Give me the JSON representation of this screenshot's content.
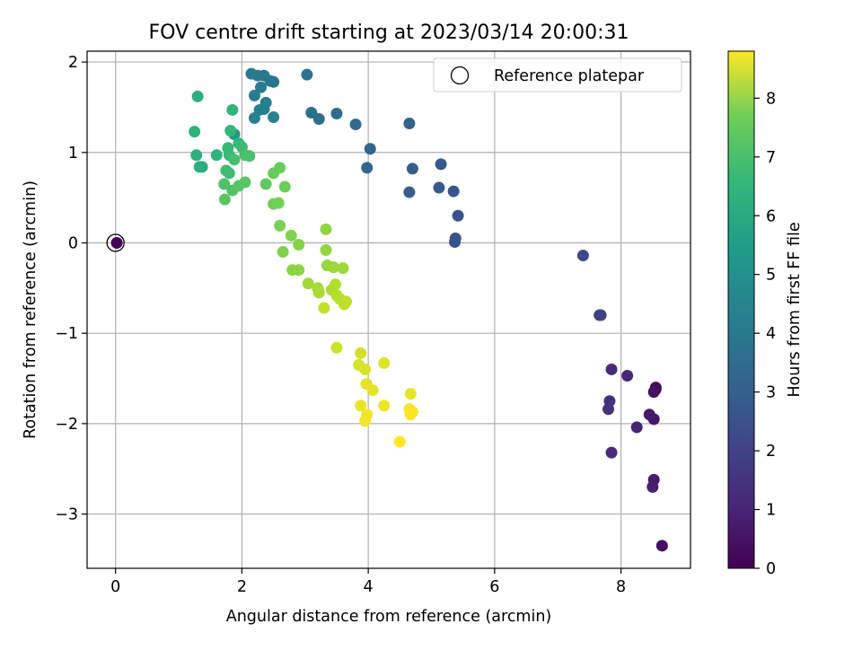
{
  "chart_data": {
    "type": "scatter",
    "title": "FOV centre drift starting at 2023/03/14 20:00:31",
    "xlabel": "Angular distance from reference (arcmin)",
    "ylabel": "Rotation from reference (arcmin)",
    "xlim": [
      -0.45,
      9.1
    ],
    "ylim": [
      -3.6,
      2.12
    ],
    "xticks": [
      0,
      2,
      4,
      6,
      8
    ],
    "yticks": [
      -3,
      -2,
      -1,
      0,
      1,
      2
    ],
    "grid": true,
    "legend": {
      "placement": "top-right",
      "entries": [
        "Reference platepar"
      ]
    },
    "colorbar": {
      "label": "Hours from first FF file",
      "range": [
        0,
        8.8
      ],
      "ticks": [
        0,
        1,
        2,
        3,
        4,
        5,
        6,
        7,
        8
      ],
      "colormap": "viridis"
    },
    "reference_point": {
      "x": 0,
      "y": 0
    },
    "points": [
      {
        "x": 8.65,
        "y": -3.35,
        "h": 0.3
      },
      {
        "x": 8.55,
        "y": -1.62,
        "h": 0.35
      },
      {
        "x": 8.55,
        "y": -1.6,
        "h": 0.3
      },
      {
        "x": 8.52,
        "y": -1.65,
        "h": 0.45
      },
      {
        "x": 8.52,
        "y": -1.95,
        "h": 0.55
      },
      {
        "x": 8.45,
        "y": -1.9,
        "h": 0.6
      },
      {
        "x": 8.52,
        "y": -2.62,
        "h": 0.65
      },
      {
        "x": 8.5,
        "y": -2.7,
        "h": 0.75
      },
      {
        "x": 8.25,
        "y": -2.04,
        "h": 0.85
      },
      {
        "x": 8.1,
        "y": -1.47,
        "h": 0.95
      },
      {
        "x": 7.85,
        "y": -1.4,
        "h": 1.05
      },
      {
        "x": 7.85,
        "y": -2.32,
        "h": 1.1
      },
      {
        "x": 7.82,
        "y": -1.75,
        "h": 1.2
      },
      {
        "x": 7.8,
        "y": -1.84,
        "h": 1.3
      },
      {
        "x": 7.68,
        "y": -0.8,
        "h": 1.6
      },
      {
        "x": 7.66,
        "y": -0.8,
        "h": 1.7
      },
      {
        "x": 7.4,
        "y": -0.14,
        "h": 2.0
      },
      {
        "x": 5.42,
        "y": 0.3,
        "h": 2.2
      },
      {
        "x": 5.38,
        "y": 0.05,
        "h": 2.25
      },
      {
        "x": 5.37,
        "y": 0.01,
        "h": 2.3
      },
      {
        "x": 5.35,
        "y": 0.57,
        "h": 2.35
      },
      {
        "x": 5.15,
        "y": 0.87,
        "h": 2.45
      },
      {
        "x": 5.12,
        "y": 0.61,
        "h": 2.5
      },
      {
        "x": 4.7,
        "y": 0.82,
        "h": 2.6
      },
      {
        "x": 4.65,
        "y": 0.56,
        "h": 2.65
      },
      {
        "x": 4.65,
        "y": 1.32,
        "h": 2.75
      },
      {
        "x": 4.03,
        "y": 1.04,
        "h": 2.85
      },
      {
        "x": 3.98,
        "y": 0.83,
        "h": 2.9
      },
      {
        "x": 3.8,
        "y": 1.31,
        "h": 3.0
      },
      {
        "x": 3.5,
        "y": 1.43,
        "h": 3.1
      },
      {
        "x": 3.22,
        "y": 1.37,
        "h": 3.2
      },
      {
        "x": 3.1,
        "y": 1.44,
        "h": 3.25
      },
      {
        "x": 3.03,
        "y": 1.86,
        "h": 3.3
      },
      {
        "x": 2.5,
        "y": 1.78,
        "h": 3.4
      },
      {
        "x": 2.45,
        "y": 1.79,
        "h": 3.45
      },
      {
        "x": 2.35,
        "y": 1.85,
        "h": 3.5
      },
      {
        "x": 2.25,
        "y": 1.85,
        "h": 3.55
      },
      {
        "x": 2.15,
        "y": 1.87,
        "h": 3.6
      },
      {
        "x": 2.3,
        "y": 1.72,
        "h": 3.65
      },
      {
        "x": 2.2,
        "y": 1.63,
        "h": 3.7
      },
      {
        "x": 2.38,
        "y": 1.55,
        "h": 3.75
      },
      {
        "x": 2.35,
        "y": 1.48,
        "h": 3.8
      },
      {
        "x": 2.28,
        "y": 1.47,
        "h": 3.85
      },
      {
        "x": 2.2,
        "y": 1.38,
        "h": 3.9
      },
      {
        "x": 2.5,
        "y": 1.39,
        "h": 3.95
      },
      {
        "x": 1.88,
        "y": 1.2,
        "h": 4.6
      },
      {
        "x": 1.37,
        "y": 0.84,
        "h": 5.4
      },
      {
        "x": 1.33,
        "y": 0.84,
        "h": 5.45
      },
      {
        "x": 1.3,
        "y": 1.62,
        "h": 5.5
      },
      {
        "x": 1.28,
        "y": 0.97,
        "h": 5.55
      },
      {
        "x": 1.25,
        "y": 1.23,
        "h": 5.6
      },
      {
        "x": 1.6,
        "y": 0.97,
        "h": 5.7
      },
      {
        "x": 1.85,
        "y": 1.47,
        "h": 5.75
      },
      {
        "x": 1.82,
        "y": 1.24,
        "h": 5.8
      },
      {
        "x": 1.95,
        "y": 1.1,
        "h": 5.85
      },
      {
        "x": 1.78,
        "y": 1.05,
        "h": 5.9
      },
      {
        "x": 1.8,
        "y": 0.97,
        "h": 5.95
      },
      {
        "x": 2.0,
        "y": 1.06,
        "h": 6.0
      },
      {
        "x": 1.75,
        "y": 0.8,
        "h": 6.05
      },
      {
        "x": 1.8,
        "y": 0.77,
        "h": 6.1
      },
      {
        "x": 1.88,
        "y": 0.92,
        "h": 6.15
      },
      {
        "x": 2.05,
        "y": 0.97,
        "h": 6.2
      },
      {
        "x": 2.12,
        "y": 0.96,
        "h": 6.25
      },
      {
        "x": 1.72,
        "y": 0.65,
        "h": 6.3
      },
      {
        "x": 1.85,
        "y": 0.58,
        "h": 6.35
      },
      {
        "x": 1.95,
        "y": 0.63,
        "h": 6.4
      },
      {
        "x": 2.05,
        "y": 0.67,
        "h": 6.45
      },
      {
        "x": 1.73,
        "y": 0.48,
        "h": 6.5
      },
      {
        "x": 2.38,
        "y": 0.65,
        "h": 6.6
      },
      {
        "x": 2.5,
        "y": 0.77,
        "h": 6.7
      },
      {
        "x": 2.6,
        "y": 0.83,
        "h": 6.75
      },
      {
        "x": 2.68,
        "y": 0.62,
        "h": 6.8
      },
      {
        "x": 2.5,
        "y": 0.43,
        "h": 6.85
      },
      {
        "x": 2.58,
        "y": 0.44,
        "h": 6.9
      },
      {
        "x": 2.6,
        "y": 0.19,
        "h": 7.0
      },
      {
        "x": 2.65,
        "y": -0.1,
        "h": 7.05
      },
      {
        "x": 2.78,
        "y": 0.08,
        "h": 7.1
      },
      {
        "x": 2.9,
        "y": -0.02,
        "h": 7.15
      },
      {
        "x": 2.8,
        "y": -0.3,
        "h": 7.2
      },
      {
        "x": 2.9,
        "y": -0.3,
        "h": 7.25
      },
      {
        "x": 3.33,
        "y": 0.15,
        "h": 7.3
      },
      {
        "x": 3.33,
        "y": -0.08,
        "h": 7.35
      },
      {
        "x": 3.35,
        "y": -0.25,
        "h": 7.4
      },
      {
        "x": 3.45,
        "y": -0.27,
        "h": 7.45
      },
      {
        "x": 3.6,
        "y": -0.28,
        "h": 7.5
      },
      {
        "x": 3.05,
        "y": -0.45,
        "h": 7.55
      },
      {
        "x": 3.2,
        "y": -0.5,
        "h": 7.6
      },
      {
        "x": 3.22,
        "y": -0.55,
        "h": 7.65
      },
      {
        "x": 3.42,
        "y": -0.52,
        "h": 7.7
      },
      {
        "x": 3.48,
        "y": -0.46,
        "h": 7.75
      },
      {
        "x": 3.5,
        "y": -0.58,
        "h": 7.8
      },
      {
        "x": 3.55,
        "y": -0.62,
        "h": 7.85
      },
      {
        "x": 3.62,
        "y": -0.68,
        "h": 7.9
      },
      {
        "x": 3.65,
        "y": -0.65,
        "h": 7.95
      },
      {
        "x": 3.3,
        "y": -0.72,
        "h": 8.0
      },
      {
        "x": 3.5,
        "y": -1.16,
        "h": 8.1
      },
      {
        "x": 3.88,
        "y": -1.22,
        "h": 8.2
      },
      {
        "x": 3.85,
        "y": -1.35,
        "h": 8.25
      },
      {
        "x": 3.95,
        "y": -1.4,
        "h": 8.3
      },
      {
        "x": 4.25,
        "y": -1.33,
        "h": 8.35
      },
      {
        "x": 3.97,
        "y": -1.56,
        "h": 8.4
      },
      {
        "x": 4.07,
        "y": -1.63,
        "h": 8.45
      },
      {
        "x": 4.67,
        "y": -1.67,
        "h": 8.5
      },
      {
        "x": 3.88,
        "y": -1.8,
        "h": 8.55
      },
      {
        "x": 4.25,
        "y": -1.8,
        "h": 8.6
      },
      {
        "x": 3.98,
        "y": -1.9,
        "h": 8.62
      },
      {
        "x": 3.95,
        "y": -1.97,
        "h": 8.65
      },
      {
        "x": 4.65,
        "y": -1.84,
        "h": 8.7
      },
      {
        "x": 4.7,
        "y": -1.87,
        "h": 8.72
      },
      {
        "x": 4.67,
        "y": -1.9,
        "h": 8.75
      },
      {
        "x": 4.5,
        "y": -2.2,
        "h": 8.8
      },
      {
        "x": 0.02,
        "y": 0.0,
        "h": 0.0
      }
    ]
  }
}
